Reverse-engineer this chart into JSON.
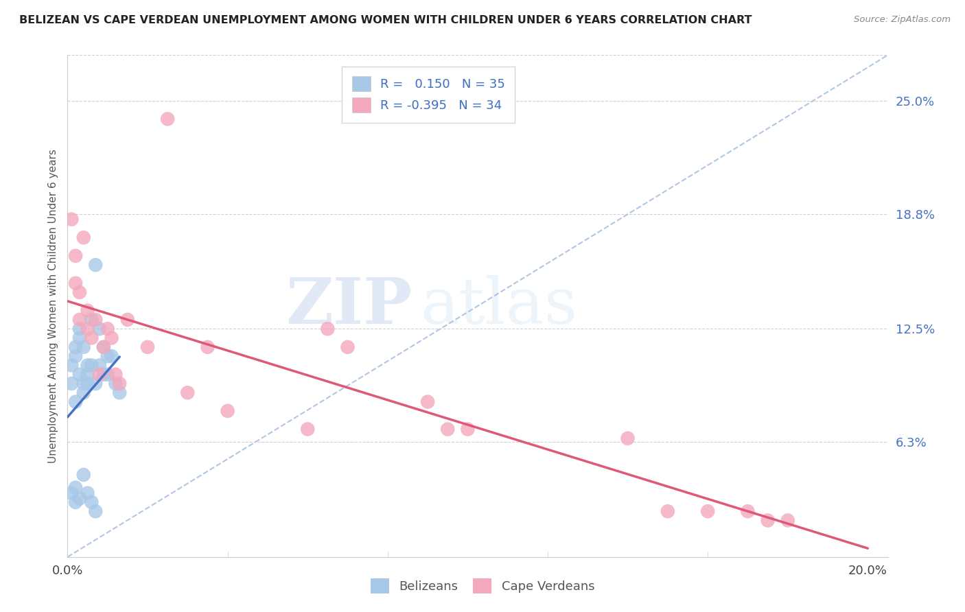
{
  "title": "BELIZEAN VS CAPE VERDEAN UNEMPLOYMENT AMONG WOMEN WITH CHILDREN UNDER 6 YEARS CORRELATION CHART",
  "source": "Source: ZipAtlas.com",
  "ylabel": "Unemployment Among Women with Children Under 6 years",
  "ytick_labels": [
    "25.0%",
    "18.8%",
    "12.5%",
    "6.3%"
  ],
  "ytick_values": [
    0.25,
    0.188,
    0.125,
    0.063
  ],
  "xlim": [
    0.0,
    0.205
  ],
  "ylim": [
    0.0,
    0.275
  ],
  "belizean_color": "#a8c8e8",
  "cape_verdean_color": "#f4a8bc",
  "belizean_line_color": "#4472c4",
  "cape_verdean_line_color": "#e05878",
  "diagonal_color": "#a8c0e0",
  "R_belizean": 0.15,
  "N_belizean": 35,
  "R_cape_verdean": -0.395,
  "N_cape_verdean": 34,
  "watermark_zip": "ZIP",
  "watermark_atlas": "atlas",
  "bel_x": [
    0.001,
    0.001,
    0.002,
    0.002,
    0.002,
    0.003,
    0.003,
    0.003,
    0.004,
    0.004,
    0.004,
    0.005,
    0.005,
    0.005,
    0.006,
    0.006,
    0.007,
    0.007,
    0.008,
    0.008,
    0.009,
    0.009,
    0.01,
    0.01,
    0.011,
    0.012,
    0.013,
    0.001,
    0.002,
    0.002,
    0.003,
    0.004,
    0.005,
    0.006,
    0.007
  ],
  "bel_y": [
    0.095,
    0.105,
    0.11,
    0.115,
    0.085,
    0.12,
    0.125,
    0.1,
    0.115,
    0.095,
    0.09,
    0.105,
    0.1,
    0.095,
    0.13,
    0.105,
    0.16,
    0.095,
    0.125,
    0.105,
    0.115,
    0.1,
    0.11,
    0.1,
    0.11,
    0.095,
    0.09,
    0.035,
    0.038,
    0.03,
    0.032,
    0.045,
    0.035,
    0.03,
    0.025
  ],
  "cape_x": [
    0.001,
    0.002,
    0.002,
    0.003,
    0.003,
    0.004,
    0.005,
    0.005,
    0.006,
    0.007,
    0.008,
    0.009,
    0.01,
    0.011,
    0.012,
    0.013,
    0.015,
    0.02,
    0.025,
    0.03,
    0.035,
    0.04,
    0.06,
    0.065,
    0.07,
    0.09,
    0.095,
    0.1,
    0.14,
    0.15,
    0.16,
    0.17,
    0.175,
    0.18
  ],
  "cape_y": [
    0.185,
    0.15,
    0.165,
    0.13,
    0.145,
    0.175,
    0.125,
    0.135,
    0.12,
    0.13,
    0.1,
    0.115,
    0.125,
    0.12,
    0.1,
    0.095,
    0.13,
    0.115,
    0.24,
    0.09,
    0.115,
    0.08,
    0.07,
    0.125,
    0.115,
    0.085,
    0.07,
    0.07,
    0.065,
    0.025,
    0.025,
    0.025,
    0.02,
    0.02
  ]
}
